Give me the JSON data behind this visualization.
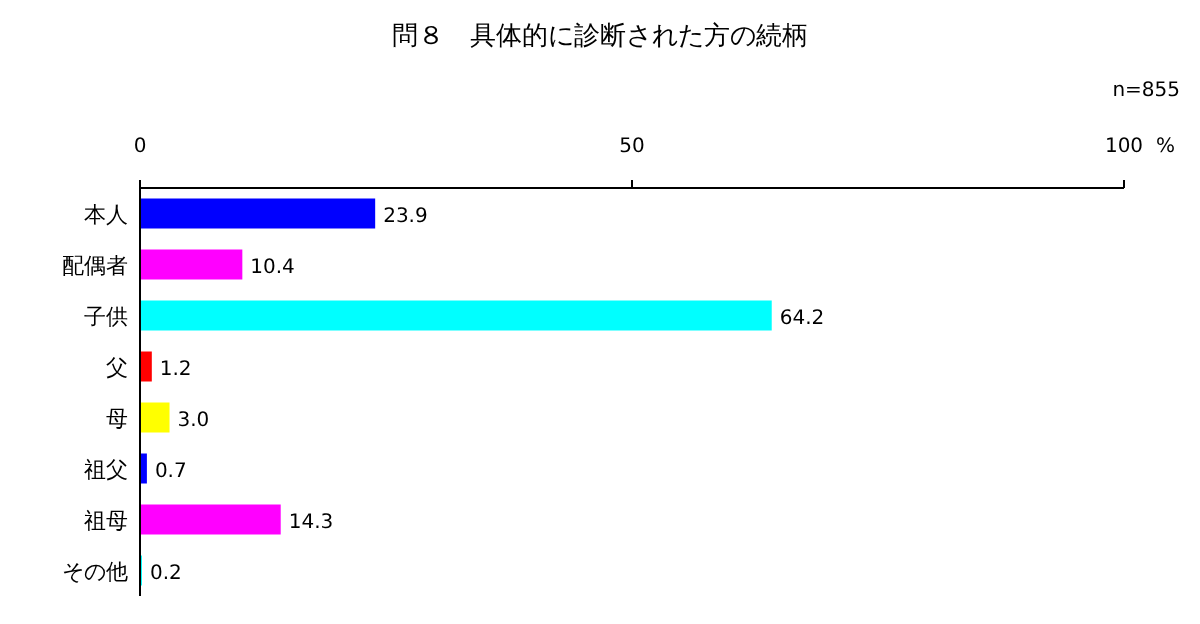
{
  "chart_data": {
    "type": "bar",
    "orientation": "horizontal",
    "title": "問８　具体的に診断された方の続柄",
    "xlabel": "%",
    "annotations": [
      "n=855"
    ],
    "categories": [
      "本人",
      "配偶者",
      "子供",
      "父",
      "母",
      "祖父",
      "祖母",
      "その他"
    ],
    "values": [
      23.9,
      10.4,
      64.2,
      1.2,
      3.0,
      0.7,
      14.3,
      0.2
    ],
    "colors": [
      "#0000ff",
      "#ff00ff",
      "#00ffff",
      "#ff0000",
      "#ffff00",
      "#0000ff",
      "#ff00ff",
      "#00ffff"
    ],
    "value_labels": [
      "23.9",
      "10.4",
      "64.2",
      "1.2",
      "3.0",
      "0.7",
      "14.3",
      "0.2"
    ],
    "xlim": [
      0,
      100
    ],
    "xticks": [
      0,
      50,
      100
    ],
    "grid": false
  }
}
